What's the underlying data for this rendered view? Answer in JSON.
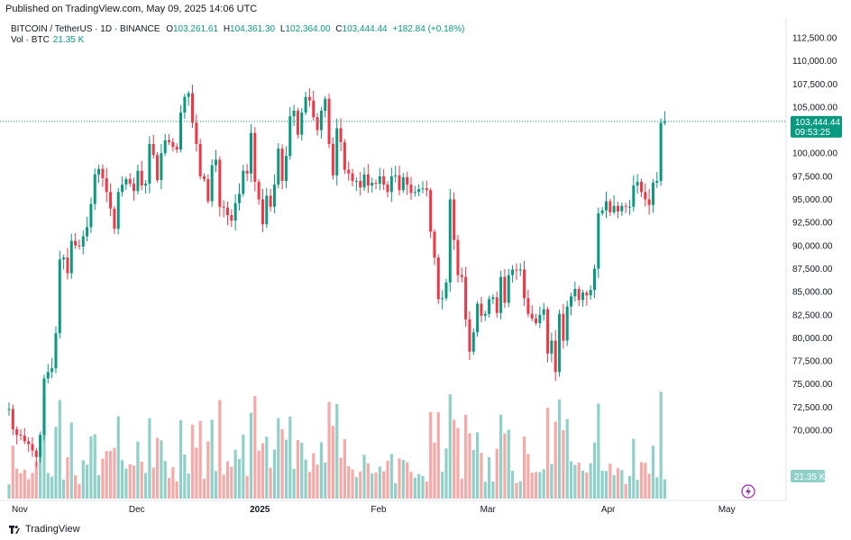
{
  "header": {
    "published": "Published on TradingView.com, May 09, 2025 14:06 UTC"
  },
  "legend": {
    "symbol": "BITCOIN / TetherUS · 1D · BINANCE",
    "open_label": "O",
    "open": "103,261.61",
    "high_label": "H",
    "high": "104,361.30",
    "low_label": "L",
    "low": "102,364.00",
    "close_label": "C",
    "close": "103,444.44",
    "change": "+182.84 (+0.18%)",
    "vol_label": "Vol · BTC",
    "vol": "21.35 K"
  },
  "price_badge": {
    "price": "103,444.44",
    "countdown": "09:53:25"
  },
  "volume_badge": "21.35 K",
  "footer": {
    "brand": "TradingView"
  },
  "colors": {
    "up": "#089981",
    "down": "#f23645",
    "up_vol": "#8fd1c8",
    "down_vol": "#f7a9a7",
    "badge": "#089981"
  },
  "chart_data": {
    "type": "candlestick",
    "title": "BITCOIN / TetherUS · 1D · BINANCE",
    "y_ticks": [
      "70,000.00",
      "72,500.00",
      "75,000.00",
      "77,500.00",
      "80,000.00",
      "82,500.00",
      "85,000.00",
      "87,500.00",
      "90,000.00",
      "92,500.00",
      "95,000.00",
      "97,500.00",
      "100,000.00",
      "102,500.00",
      "105,000.00",
      "107,500.00",
      "110,000.00",
      "112,500.00"
    ],
    "y_tick_values": [
      70000,
      72500,
      75000,
      77500,
      80000,
      82500,
      85000,
      87500,
      90000,
      92500,
      95000,
      97500,
      100000,
      102500,
      105000,
      107500,
      110000,
      112500
    ],
    "x_ticks": [
      {
        "label": "Nov",
        "day": 0,
        "bold": false
      },
      {
        "label": "Dec",
        "day": 30,
        "bold": false
      },
      {
        "label": "2025",
        "day": 61,
        "bold": true
      },
      {
        "label": "Feb",
        "day": 92,
        "bold": false
      },
      {
        "label": "Mar",
        "day": 120,
        "bold": false
      },
      {
        "label": "Apr",
        "day": 151,
        "bold": false
      },
      {
        "label": "May",
        "day": 181,
        "bold": false
      }
    ],
    "ylim": [
      67000,
      113500
    ],
    "grid": false,
    "current_price": 103444.44,
    "closes": [
      72300,
      70100,
      69500,
      69400,
      68800,
      68500,
      67800,
      67100,
      69500,
      75600,
      76300,
      76700,
      80500,
      88500,
      88700,
      87000,
      90500,
      90000,
      89900,
      91000,
      92000,
      94500,
      97700,
      98300,
      97300,
      95800,
      94000,
      91800,
      95800,
      96600,
      97200,
      96700,
      95900,
      98100,
      96500,
      96700,
      101000,
      99800,
      97100,
      100000,
      101400,
      101200,
      100700,
      100400,
      104400,
      106100,
      106500,
      103300,
      101000,
      97500,
      97200,
      94800,
      98700,
      99300,
      94200,
      94100,
      93300,
      92700,
      94600,
      95600,
      98100,
      97800,
      102200,
      96900,
      95000,
      92300,
      95400,
      94200,
      96600,
      100500,
      97000,
      99700,
      104000,
      104600,
      102000,
      104400,
      106100,
      105700,
      103900,
      102500,
      104600,
      105900,
      101000,
      97600,
      102700,
      101200,
      98200,
      97800,
      97000,
      97000,
      96300,
      97700,
      96500,
      96800,
      96700,
      97500,
      96600,
      95800,
      97500,
      97600,
      96000,
      97400,
      96600,
      95700,
      95800,
      96100,
      96200,
      96000,
      91500,
      88700,
      84200,
      84300,
      86000,
      95000,
      90600,
      86800,
      86600,
      82000,
      78500,
      80600,
      83700,
      82400,
      82600,
      84200,
      84400,
      82700,
      86600,
      83800,
      86800,
      87400,
      87300,
      87400,
      84300,
      82600,
      82100,
      81600,
      82500,
      83100,
      78300,
      79700,
      76300,
      82600,
      79700,
      83400,
      84500,
      85300,
      84100,
      84900,
      84600,
      85200,
      87500,
      93500,
      93800,
      94800,
      93600,
      94300,
      93700,
      94300,
      94200,
      94200,
      96500,
      96900,
      95800,
      95000,
      94400,
      96800,
      97000,
      103300,
      103444
    ]
  }
}
